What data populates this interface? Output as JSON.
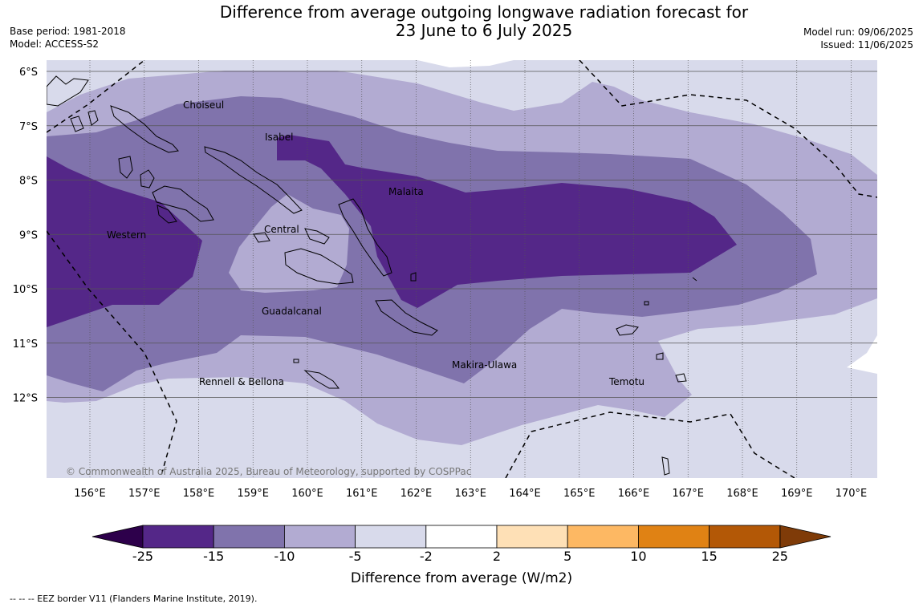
{
  "title": {
    "line1": "Difference from average outgoing longwave radiation forecast for",
    "line2": "23 June to 6 July 2025"
  },
  "meta": {
    "base_period": "Base period: 1981-2018",
    "model": "Model: ACCESS-S2",
    "model_run": "Model run: 09/06/2025",
    "issued": "Issued: 11/06/2025"
  },
  "map": {
    "lat_labels": [
      "6°S",
      "7°S",
      "8°S",
      "9°S",
      "10°S",
      "11°S",
      "12°S"
    ],
    "lon_labels": [
      "156°E",
      "157°E",
      "158°E",
      "159°E",
      "160°E",
      "161°E",
      "162°E",
      "163°E",
      "164°E",
      "165°E",
      "166°E",
      "167°E",
      "168°E",
      "169°E",
      "170°E"
    ],
    "regions": [
      "Choiseul",
      "Isabel",
      "Malaita",
      "Western",
      "Central",
      "Guadalcanal",
      "Makira-Ulawa",
      "Rennell & Bellona",
      "Temotu"
    ],
    "credit": "© Commonwealth of Australia 2025, Bureau of Meteorology, supported by COSPPac",
    "category_colors": {
      "lt-25": "#2d004b",
      "-25to-15": "#542788",
      "-15to-10": "#8073ac",
      "-10to-5": "#b2abd2",
      "-5to-2": "#d8daeb",
      "-2to2": "#ffffff",
      "2to5": "#fee0b6",
      "5to10": "#fdb863",
      "10to15": "#e08214",
      "15to25": "#b35806",
      "gt25": "#7f3b08"
    }
  },
  "colorbar": {
    "ticks": [
      "-25",
      "-15",
      "-10",
      "-5",
      "-2",
      "2",
      "5",
      "10",
      "15",
      "25"
    ],
    "label": "Difference from average (W/m2)"
  },
  "footer": {
    "legend": "-- -- -- EEZ border V11 (Flanders Marine Institute, 2019)."
  }
}
